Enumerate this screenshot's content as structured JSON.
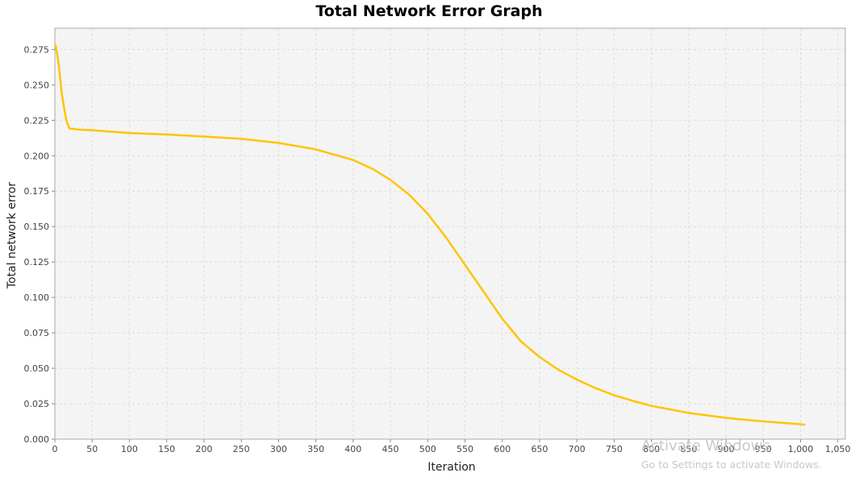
{
  "chart_data": {
    "type": "line",
    "title": "Total Network Error Graph",
    "xlabel": "Iteration",
    "ylabel": "Total network error",
    "xlim": [
      0,
      1060
    ],
    "ylim": [
      0,
      0.29
    ],
    "x_ticks": [
      0,
      50,
      100,
      150,
      200,
      250,
      300,
      350,
      400,
      450,
      500,
      550,
      600,
      650,
      700,
      750,
      800,
      850,
      900,
      950,
      1000,
      1050
    ],
    "x_tick_labels": [
      "0",
      "50",
      "100",
      "150",
      "200",
      "250",
      "300",
      "350",
      "400",
      "450",
      "500",
      "550",
      "600",
      "650",
      "700",
      "750",
      "800",
      "850",
      "900",
      "950",
      "1,000",
      "1,050"
    ],
    "y_ticks": [
      0,
      0.025,
      0.05,
      0.075,
      0.1,
      0.125,
      0.15,
      0.175,
      0.2,
      0.225,
      0.25,
      0.275
    ],
    "y_tick_labels": [
      "0.000",
      "0.025",
      "0.050",
      "0.075",
      "0.100",
      "0.125",
      "0.150",
      "0.175",
      "0.200",
      "0.225",
      "0.250",
      "0.275"
    ],
    "grid": true,
    "series": [
      {
        "color": "#ffc400",
        "x": [
          1,
          3,
          5,
          7,
          9,
          12,
          15,
          18,
          20,
          25,
          30,
          50,
          100,
          150,
          200,
          250,
          300,
          350,
          400,
          425,
          450,
          475,
          500,
          525,
          550,
          575,
          600,
          625,
          650,
          675,
          700,
          725,
          750,
          775,
          800,
          850,
          900,
          950,
          1000,
          1005
        ],
        "y": [
          0.278,
          0.272,
          0.265,
          0.255,
          0.245,
          0.235,
          0.226,
          0.221,
          0.219,
          0.219,
          0.2185,
          0.218,
          0.216,
          0.215,
          0.2135,
          0.212,
          0.209,
          0.2045,
          0.197,
          0.191,
          0.183,
          0.1725,
          0.159,
          0.142,
          0.123,
          0.104,
          0.085,
          0.069,
          0.058,
          0.049,
          0.042,
          0.036,
          0.031,
          0.027,
          0.0235,
          0.0185,
          0.015,
          0.0125,
          0.0105,
          0.0102
        ]
      }
    ]
  },
  "watermark": {
    "title": "Activate Windows",
    "subtitle": "Go to Settings to activate Windows."
  }
}
